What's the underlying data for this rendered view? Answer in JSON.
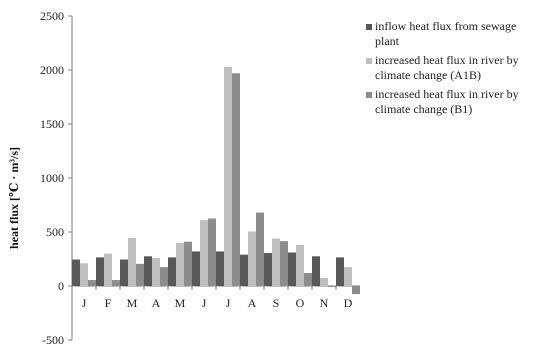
{
  "chart_data": {
    "type": "bar",
    "title": "",
    "xlabel": "",
    "ylabel": "heat flux [℃ · m³/s]",
    "ylim": [
      -500,
      2500
    ],
    "yticks": [
      -500,
      0,
      500,
      1000,
      1500,
      2000,
      2500
    ],
    "grid": false,
    "legend_position": "top-right",
    "categories": [
      "J",
      "F",
      "M",
      "A",
      "M",
      "J",
      "J",
      "A",
      "S",
      "O",
      "N",
      "D"
    ],
    "series": [
      {
        "name": "inflow heat flux from sewage plant",
        "color": "#595959",
        "values": [
          245,
          265,
          245,
          275,
          265,
          320,
          320,
          290,
          305,
          310,
          275,
          265
        ]
      },
      {
        "name": "increased heat flux in river by climate change (A1B)",
        "color": "#bfbfbf",
        "values": [
          210,
          300,
          445,
          260,
          400,
          610,
          2030,
          505,
          440,
          380,
          75,
          175
        ]
      },
      {
        "name": "increased heat flux in river by climate change (B1)",
        "color": "#8c8c8c",
        "values": [
          55,
          55,
          205,
          175,
          410,
          625,
          1970,
          680,
          415,
          120,
          -10,
          -75
        ]
      }
    ]
  }
}
